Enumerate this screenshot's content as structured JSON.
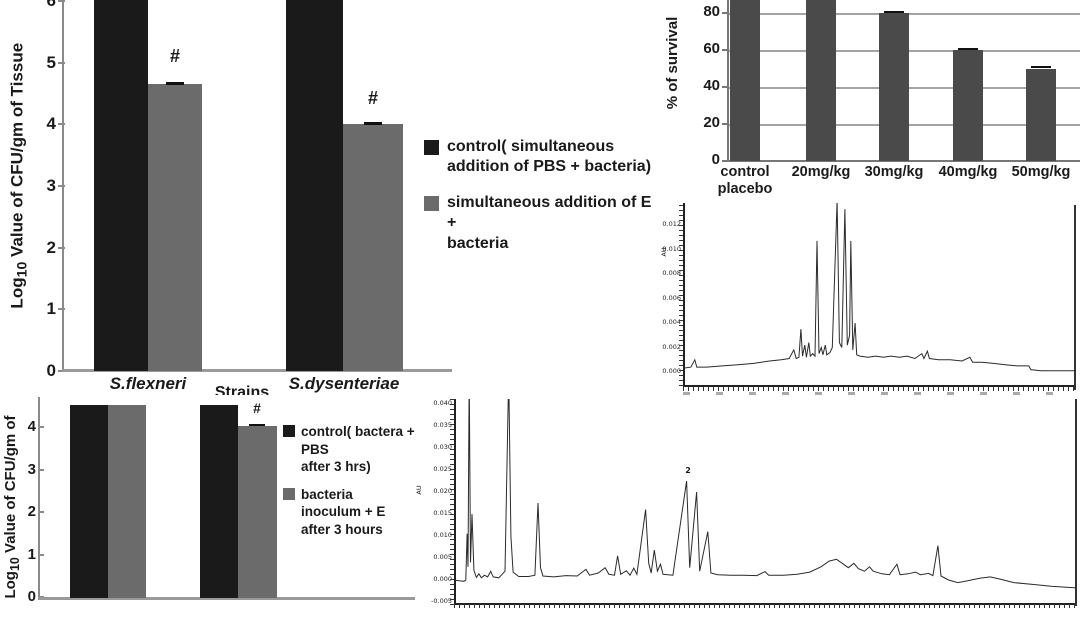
{
  "colors": {
    "black_bar": "#1a1a1a",
    "gray_bar": "#6b6b6b",
    "survival_bar": "#4a4a4a",
    "trace_line": "#2b2b2b",
    "background": "#ffffff"
  },
  "hash_symbol": "#",
  "chart_data": [
    {
      "id": "tissue_cfu_simultaneous",
      "type": "bar",
      "ylabel_pre": "Log",
      "ylabel_sub": "10",
      "ylabel_post": " Value of CFU/gm of Tissue",
      "xlabel": "Strains",
      "categories": [
        "S.flexneri",
        "S.dysenteriae"
      ],
      "yticks": [
        6,
        5,
        4,
        3,
        2,
        1,
        0
      ],
      "ylim": [
        0,
        6.1
      ],
      "series": [
        {
          "name": "control( simultaneous addition of PBS + bacteria)",
          "color": "#1a1a1a",
          "values": [
            6.6,
            6.6
          ],
          "note": "control bars extend beyond the visible top edge of the image"
        },
        {
          "name": "simultaneous addition of  E + bacteria",
          "color": "#6b6b6b",
          "values": [
            4.65,
            4.0
          ]
        }
      ],
      "annotations": [
        {
          "text": "#",
          "target": "S.flexneri E-treated bar"
        },
        {
          "text": "#",
          "target": "S.dysenteriae E-treated bar"
        }
      ],
      "legend": [
        {
          "l1": "control( simultaneous",
          "l2": "addition of PBS + bacteria)"
        },
        {
          "l1": "simultaneous addition of  E +",
          "l2": "bacteria"
        }
      ]
    },
    {
      "id": "percent_survival",
      "type": "bar",
      "ylabel": "% of survival",
      "categories": [
        "control placebo",
        "20mg/kg",
        "30mg/kg",
        "40mg/kg",
        "50mg/kg"
      ],
      "yticks": [
        80,
        60,
        40,
        20,
        0
      ],
      "ylim": [
        0,
        88
      ],
      "values": [
        100,
        100,
        80,
        60,
        50
      ],
      "grid": true,
      "bar_color": "#4a4a4a",
      "note": "control placebo and 20mg/kg bars are clipped at the top edge of the image"
    },
    {
      "id": "hplc_trace_small",
      "type": "line",
      "ylabel": "AU",
      "yticks": [
        "0.012",
        "0.010",
        "0.008",
        "0.006",
        "0.004",
        "0.002",
        "0.000"
      ],
      "x_tick_labels": "illegible",
      "points": [
        [
          0.0,
          0.0003
        ],
        [
          0.02,
          0.0004
        ],
        [
          0.03,
          0.001
        ],
        [
          0.035,
          0.0004
        ],
        [
          0.06,
          0.0004
        ],
        [
          0.1,
          0.0005
        ],
        [
          0.14,
          0.0006
        ],
        [
          0.18,
          0.0007
        ],
        [
          0.22,
          0.0009
        ],
        [
          0.25,
          0.001
        ],
        [
          0.27,
          0.0011
        ],
        [
          0.282,
          0.0018
        ],
        [
          0.288,
          0.0011
        ],
        [
          0.295,
          0.0012
        ],
        [
          0.3,
          0.0035
        ],
        [
          0.304,
          0.0013
        ],
        [
          0.31,
          0.0022
        ],
        [
          0.314,
          0.0012
        ],
        [
          0.32,
          0.0024
        ],
        [
          0.324,
          0.0013
        ],
        [
          0.33,
          0.0015
        ],
        [
          0.336,
          0.0013
        ],
        [
          0.341,
          0.0107
        ],
        [
          0.346,
          0.0015
        ],
        [
          0.352,
          0.002
        ],
        [
          0.356,
          0.0014
        ],
        [
          0.362,
          0.0022
        ],
        [
          0.366,
          0.0014
        ],
        [
          0.374,
          0.0016
        ],
        [
          0.38,
          0.002
        ],
        [
          0.392,
          0.014
        ],
        [
          0.398,
          0.0024
        ],
        [
          0.404,
          0.002
        ],
        [
          0.412,
          0.0133
        ],
        [
          0.418,
          0.0022
        ],
        [
          0.424,
          0.003
        ],
        [
          0.427,
          0.0107
        ],
        [
          0.432,
          0.0018
        ],
        [
          0.438,
          0.004
        ],
        [
          0.442,
          0.0014
        ],
        [
          0.45,
          0.0013
        ],
        [
          0.47,
          0.0012
        ],
        [
          0.49,
          0.0013
        ],
        [
          0.51,
          0.0012
        ],
        [
          0.53,
          0.0013
        ],
        [
          0.55,
          0.0012
        ],
        [
          0.57,
          0.0013
        ],
        [
          0.59,
          0.0011
        ],
        [
          0.608,
          0.0015
        ],
        [
          0.613,
          0.0011
        ],
        [
          0.622,
          0.0017
        ],
        [
          0.627,
          0.0011
        ],
        [
          0.65,
          0.001
        ],
        [
          0.68,
          0.001
        ],
        [
          0.71,
          0.0009
        ],
        [
          0.73,
          0.0012
        ],
        [
          0.737,
          0.0008
        ],
        [
          0.76,
          0.0008
        ],
        [
          0.79,
          0.0007
        ],
        [
          0.82,
          0.0006
        ],
        [
          0.85,
          0.0005
        ],
        [
          0.88,
          0.0005
        ],
        [
          0.885,
          0.0002
        ],
        [
          0.91,
          0.0001
        ],
        [
          0.95,
          0.0001
        ],
        [
          1.0,
          0.0001
        ]
      ]
    },
    {
      "id": "tissue_cfu_3hrs",
      "type": "bar",
      "ylabel_pre": "Log",
      "ylabel_sub": "10",
      "ylabel_post": " Value of CFU/gm of",
      "categories": [
        "",
        ""
      ],
      "yticks": [
        4,
        3,
        2,
        1,
        0
      ],
      "ylim": [
        0,
        4.75
      ],
      "series": [
        {
          "name": "control( bactera + PBS after 3 hrs)",
          "color": "#1a1a1a",
          "values": [
            4.55,
            4.55
          ]
        },
        {
          "name": "bacteria inoculum + E after 3 hours",
          "color": "#6b6b6b",
          "values": [
            4.55,
            4.05
          ]
        }
      ],
      "annotations": [
        {
          "text": "#",
          "target": "second group treated bar"
        }
      ],
      "legend": [
        {
          "l1": "control( bactera + PBS",
          "l2": "after 3 hrs)"
        },
        {
          "l1": "bacteria inoculum + E",
          "l2": "after 3 hours"
        }
      ],
      "note": "x-axis category labels are cut off at the bottom edge of the image"
    },
    {
      "id": "hplc_trace_large",
      "type": "line",
      "ylabel": "AU",
      "yticks": [
        "0.040",
        "0.035",
        "0.030",
        "0.025",
        "0.020",
        "0.015",
        "0.010",
        "0.005",
        "0.000",
        "-0.005"
      ],
      "peak_label": "2",
      "x_tick_labels": "cut off at bottom edge",
      "points": [
        [
          0.0,
          0.0
        ],
        [
          0.01,
          -0.0002
        ],
        [
          0.016,
          -0.0003
        ],
        [
          0.019,
          0.0
        ],
        [
          0.021,
          0.0105
        ],
        [
          0.0225,
          0.003
        ],
        [
          0.0245,
          0.047
        ],
        [
          0.0265,
          0.004
        ],
        [
          0.029,
          0.015
        ],
        [
          0.032,
          0.0022
        ],
        [
          0.036,
          0.0006
        ],
        [
          0.04,
          0.0014
        ],
        [
          0.044,
          0.0005
        ],
        [
          0.049,
          0.0011
        ],
        [
          0.054,
          0.0007
        ],
        [
          0.059,
          0.002
        ],
        [
          0.063,
          0.0007
        ],
        [
          0.072,
          0.0005
        ],
        [
          0.082,
          0.002
        ],
        [
          0.088,
          0.047
        ],
        [
          0.0915,
          0.01
        ],
        [
          0.095,
          0.0018
        ],
        [
          0.104,
          0.0008
        ],
        [
          0.12,
          0.0008
        ],
        [
          0.13,
          0.0011
        ],
        [
          0.135,
          0.0175
        ],
        [
          0.139,
          0.0028
        ],
        [
          0.143,
          0.0009
        ],
        [
          0.16,
          0.0007
        ],
        [
          0.18,
          0.001
        ],
        [
          0.198,
          0.0009
        ],
        [
          0.212,
          0.0024
        ],
        [
          0.218,
          0.0011
        ],
        [
          0.232,
          0.0016
        ],
        [
          0.243,
          0.0028
        ],
        [
          0.249,
          0.0013
        ],
        [
          0.258,
          0.0011
        ],
        [
          0.263,
          0.0055
        ],
        [
          0.268,
          0.0013
        ],
        [
          0.277,
          0.0021
        ],
        [
          0.283,
          0.0011
        ],
        [
          0.289,
          0.0027
        ],
        [
          0.294,
          0.0013
        ],
        [
          0.308,
          0.016
        ],
        [
          0.313,
          0.0038
        ],
        [
          0.317,
          0.0016
        ],
        [
          0.322,
          0.0068
        ],
        [
          0.327,
          0.002
        ],
        [
          0.332,
          0.0036
        ],
        [
          0.336,
          0.0013
        ],
        [
          0.352,
          0.0011
        ],
        [
          0.374,
          0.0225
        ],
        [
          0.379,
          0.0028
        ],
        [
          0.39,
          0.02
        ],
        [
          0.395,
          0.002
        ],
        [
          0.408,
          0.011
        ],
        [
          0.413,
          0.0016
        ],
        [
          0.424,
          0.0012
        ],
        [
          0.445,
          0.0011
        ],
        [
          0.465,
          0.0011
        ],
        [
          0.487,
          0.001
        ],
        [
          0.5,
          0.0019
        ],
        [
          0.506,
          0.0011
        ],
        [
          0.53,
          0.0011
        ],
        [
          0.552,
          0.0013
        ],
        [
          0.572,
          0.0018
        ],
        [
          0.59,
          0.003
        ],
        [
          0.603,
          0.0043
        ],
        [
          0.615,
          0.0047
        ],
        [
          0.625,
          0.0037
        ],
        [
          0.634,
          0.0028
        ],
        [
          0.643,
          0.0038
        ],
        [
          0.65,
          0.0026
        ],
        [
          0.66,
          0.002
        ],
        [
          0.668,
          0.003
        ],
        [
          0.674,
          0.002
        ],
        [
          0.688,
          0.0014
        ],
        [
          0.7,
          0.0012
        ],
        [
          0.712,
          0.0036
        ],
        [
          0.717,
          0.0012
        ],
        [
          0.73,
          0.0014
        ],
        [
          0.742,
          0.0018
        ],
        [
          0.75,
          0.0012
        ],
        [
          0.763,
          0.0015
        ],
        [
          0.77,
          0.001
        ],
        [
          0.778,
          0.0078
        ],
        [
          0.783,
          0.0009
        ],
        [
          0.795,
          0.0
        ],
        [
          0.81,
          -0.0006
        ],
        [
          0.825,
          -0.0002
        ],
        [
          0.845,
          0.0004
        ],
        [
          0.862,
          0.0007
        ],
        [
          0.878,
          0.0002
        ],
        [
          0.9,
          -0.0006
        ],
        [
          0.93,
          -0.001
        ],
        [
          0.96,
          -0.0014
        ],
        [
          1.0,
          -0.0018
        ]
      ]
    }
  ]
}
